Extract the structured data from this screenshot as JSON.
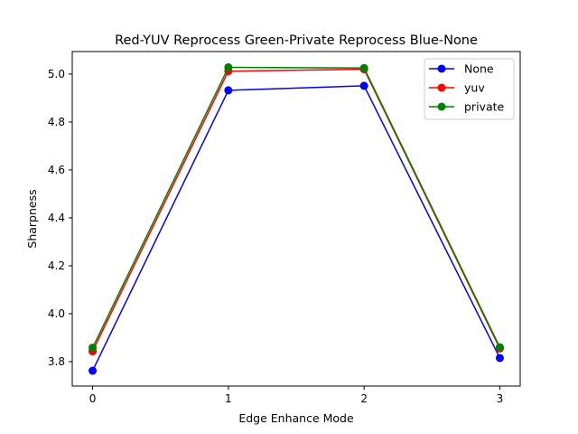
{
  "chart_data": {
    "type": "line",
    "title": "Red-YUV Reprocess  Green-Private Reprocess  Blue-None",
    "xlabel": "Edge Enhance Mode",
    "ylabel": "Sharpness",
    "x": [
      0,
      1,
      2,
      3
    ],
    "xticks": [
      "0",
      "1",
      "2",
      "3"
    ],
    "yticks": [
      "3.8",
      "4.0",
      "4.2",
      "4.4",
      "4.6",
      "4.8",
      "5.0"
    ],
    "xlim": [
      -0.15,
      3.15
    ],
    "ylim": [
      3.698,
      5.094
    ],
    "grid": false,
    "legend_position": "top-right",
    "series": [
      {
        "name": "None",
        "color": "#0000ff",
        "values": [
          3.762,
          4.932,
          4.951,
          3.815
        ]
      },
      {
        "name": "yuv",
        "color": "#ff0000",
        "values": [
          3.843,
          5.012,
          5.02,
          3.855
        ]
      },
      {
        "name": "private",
        "color": "#008000",
        "values": [
          3.858,
          5.028,
          5.025,
          3.86
        ]
      }
    ]
  }
}
